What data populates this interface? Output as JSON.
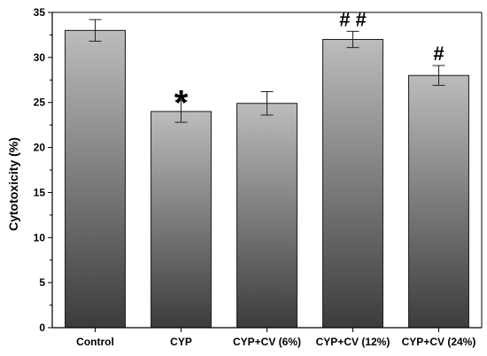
{
  "chart_data": {
    "type": "bar",
    "title": "",
    "xlabel": "",
    "ylabel": "Cytotoxicity (%)",
    "ylim": [
      0,
      35
    ],
    "yticks": [
      "0",
      "5",
      "10",
      "15",
      "20",
      "25",
      "30",
      "35"
    ],
    "categories": [
      "Control",
      "CYP",
      "CYP+CV (6%)",
      "CYP+CV (12%)",
      "CYP+CV (24%)"
    ],
    "values": [
      33,
      24,
      24.9,
      32,
      28
    ],
    "errors": [
      1.2,
      1.2,
      1.3,
      0.9,
      1.1
    ],
    "annotations": [
      "",
      "*",
      "",
      "# #",
      "#"
    ],
    "grid": false,
    "legend": "none",
    "bar_gradient": [
      "#bcbcbc",
      "#3c3c3c"
    ],
    "bar_edge_color": "#1a1a1a"
  }
}
